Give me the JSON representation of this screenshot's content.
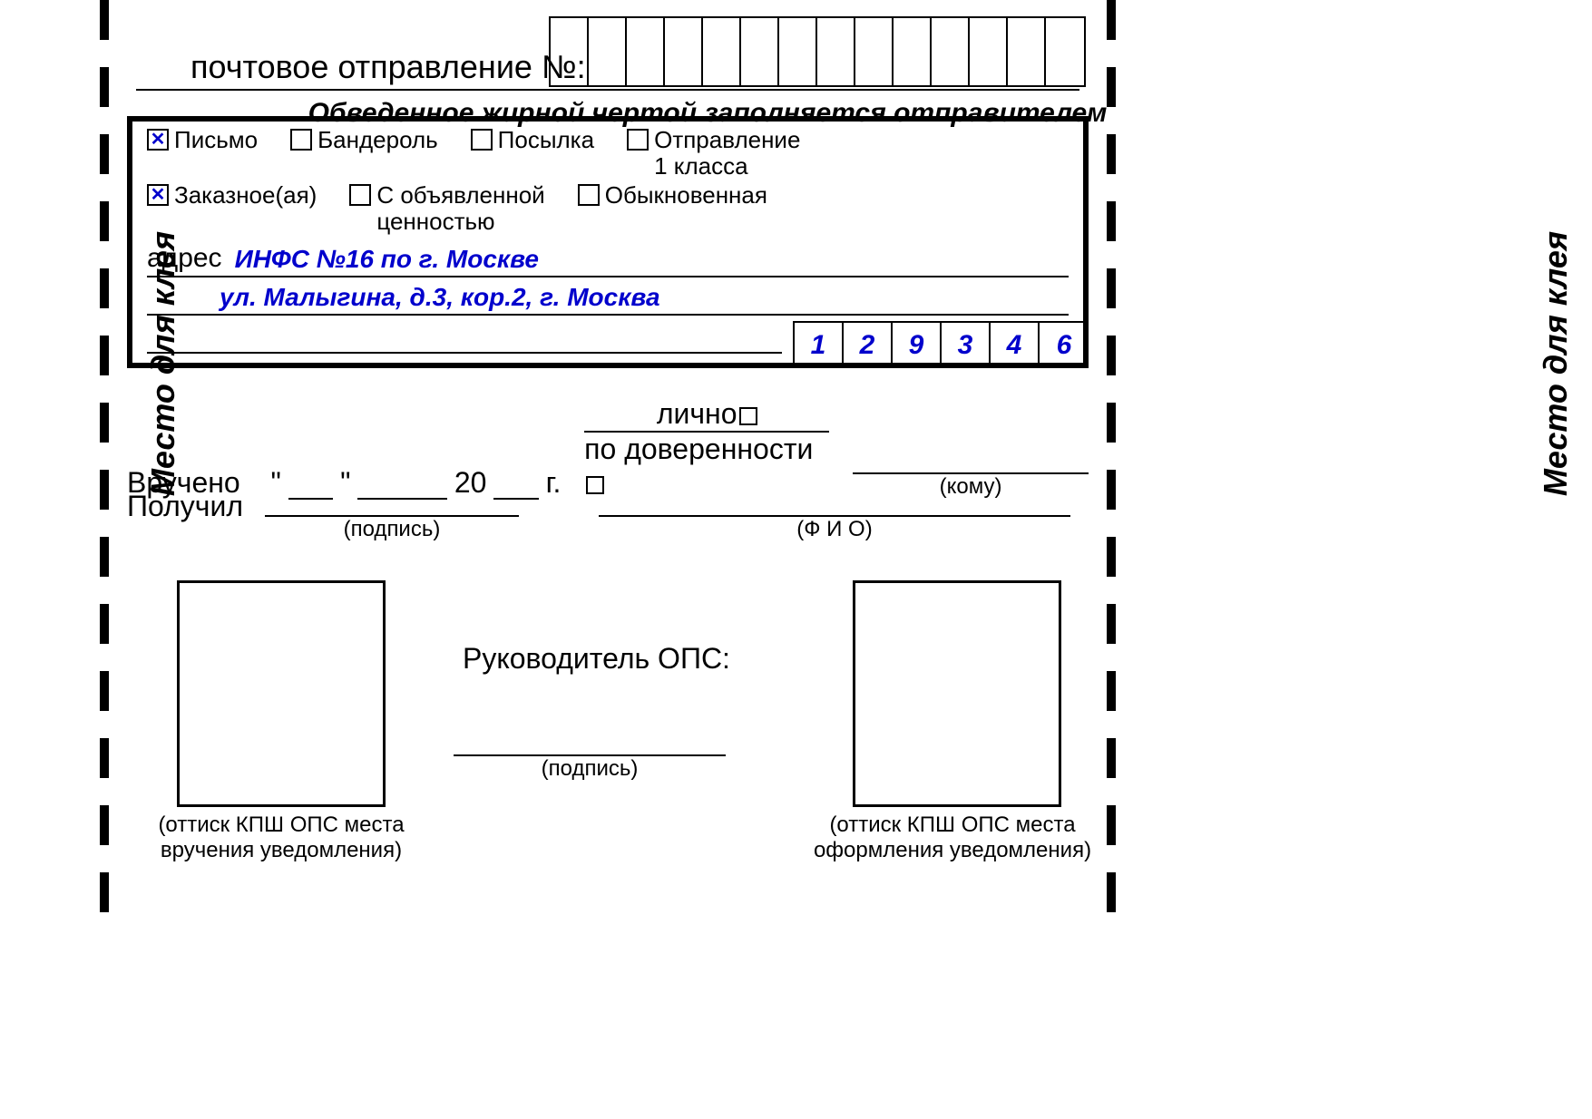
{
  "side_label": "Место для клея",
  "shipment": {
    "label": "почтовое отправление №:",
    "cells": 14
  },
  "instruction": "Обведенное жирной чертой заполняется отправителем",
  "sender": {
    "row1": [
      {
        "label": "Письмо",
        "checked": true,
        "two_line": false
      },
      {
        "label": "Бандероль",
        "checked": false,
        "two_line": false
      },
      {
        "label": "Посылка",
        "checked": false,
        "two_line": false
      },
      {
        "label": "Отправление\n1 класса",
        "checked": false,
        "two_line": true
      }
    ],
    "row2": [
      {
        "label": "Заказное(ая)",
        "checked": true,
        "two_line": false
      },
      {
        "label": "С объявленной\nценностью",
        "checked": false,
        "two_line": true
      },
      {
        "label": "Обыкновенная",
        "checked": false,
        "two_line": false
      }
    ],
    "address_label": "адрес",
    "address_line1": "ИНФС №16 по г. Москве",
    "address_line2": "ул. Малыгина, д.3, кор.2, г. Москва",
    "postal_code": [
      "1",
      "2",
      "9",
      "3",
      "4",
      "6"
    ]
  },
  "delivered": {
    "prefix": "Вручено",
    "quote_open": "\"",
    "quote_close": "\"",
    "year_prefix": "20",
    "year_suffix": "г.",
    "opt1": "лично",
    "opt2": "по доверенности",
    "whom": "(кому)"
  },
  "received": {
    "label": "Получил",
    "sign": "(подпись)",
    "fio": "(Ф И О)"
  },
  "ops": {
    "label": "Руководитель ОПС:",
    "sign": "(подпись)"
  },
  "stamp_left": "(оттиск КПШ ОПС места\nвручения уведомления)",
  "stamp_right": "(оттиск КПШ ОПС места\nоформления уведомления)"
}
